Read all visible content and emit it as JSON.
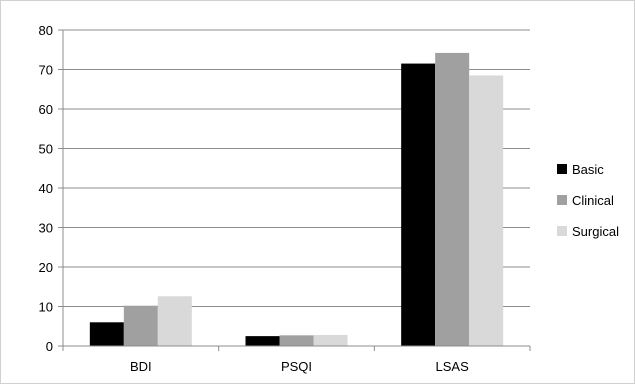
{
  "chart_data": {
    "type": "bar",
    "categories": [
      "BDI",
      "PSQI",
      "LSAS"
    ],
    "series": [
      {
        "name": "Basic",
        "values": [
          6,
          2.5,
          71.5
        ],
        "color": "#000000"
      },
      {
        "name": "Clinical",
        "values": [
          10.2,
          2.7,
          74.2
        ],
        "color": "#a0a0a0"
      },
      {
        "name": "Surgical",
        "values": [
          12.6,
          2.8,
          68.5
        ],
        "color": "#d9d9d9"
      }
    ],
    "ylim": [
      0,
      80
    ],
    "yticks": [
      0,
      10,
      20,
      30,
      40,
      50,
      60,
      70,
      80
    ],
    "grid": true,
    "legend_position": "right"
  }
}
